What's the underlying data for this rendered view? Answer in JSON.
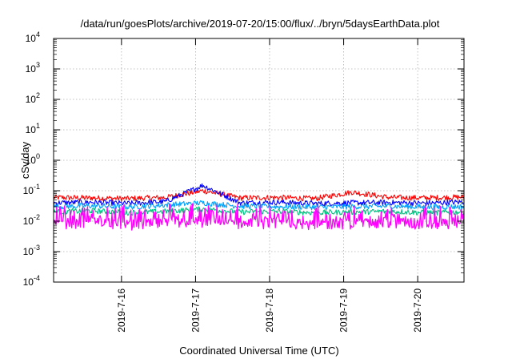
{
  "chart_data": {
    "type": "line",
    "title": "/data/run/goesPlots/archive/2019-07-20/15:00/flux/../bryn/5daysEarthData.plot",
    "xlabel": "Coordinated Universal Time (UTC)",
    "ylabel": "cSv/day",
    "yscale": "log",
    "ylim": [
      0.0001,
      10000
    ],
    "xlim": [
      "2019-07-15 02:00",
      "2019-07-20 15:00"
    ],
    "yticks": [
      {
        "base": "10",
        "exp": "-4"
      },
      {
        "base": "10",
        "exp": "-3"
      },
      {
        "base": "10",
        "exp": "-2"
      },
      {
        "base": "10",
        "exp": "-1"
      },
      {
        "base": "10",
        "exp": "0"
      },
      {
        "base": "10",
        "exp": "1"
      },
      {
        "base": "10",
        "exp": "2"
      },
      {
        "base": "10",
        "exp": "3"
      },
      {
        "base": "10",
        "exp": "4"
      }
    ],
    "xticks": [
      "2019-7-16",
      "2019-7-17",
      "2019-7-18",
      "2019-7-19",
      "2019-7-20"
    ],
    "grid": true,
    "series": [
      {
        "color": "#ff0000",
        "values": [
          0.06,
          0.058,
          0.055,
          0.06,
          0.1,
          0.058,
          0.06,
          0.055,
          0.09,
          0.06,
          0.058,
          0.062
        ]
      },
      {
        "color": "#0000ff",
        "values": [
          0.04,
          0.042,
          0.038,
          0.044,
          0.15,
          0.04,
          0.042,
          0.038,
          0.04,
          0.041,
          0.039,
          0.043
        ]
      },
      {
        "color": "#00a0ff",
        "values": [
          0.03,
          0.032,
          0.029,
          0.034,
          0.04,
          0.031,
          0.03,
          0.029,
          0.03,
          0.031,
          0.029,
          0.03
        ]
      },
      {
        "color": "#00c080",
        "values": [
          0.02,
          0.022,
          0.019,
          0.021,
          0.025,
          0.02,
          0.021,
          0.019,
          0.02,
          0.021,
          0.019,
          0.02
        ]
      },
      {
        "color": "#ff00ff",
        "values": [
          0.008,
          0.009,
          0.0075,
          0.0085,
          0.009,
          0.008,
          0.0085,
          0.0078,
          0.0082,
          0.0088,
          0.0079,
          0.0083
        ]
      }
    ]
  }
}
